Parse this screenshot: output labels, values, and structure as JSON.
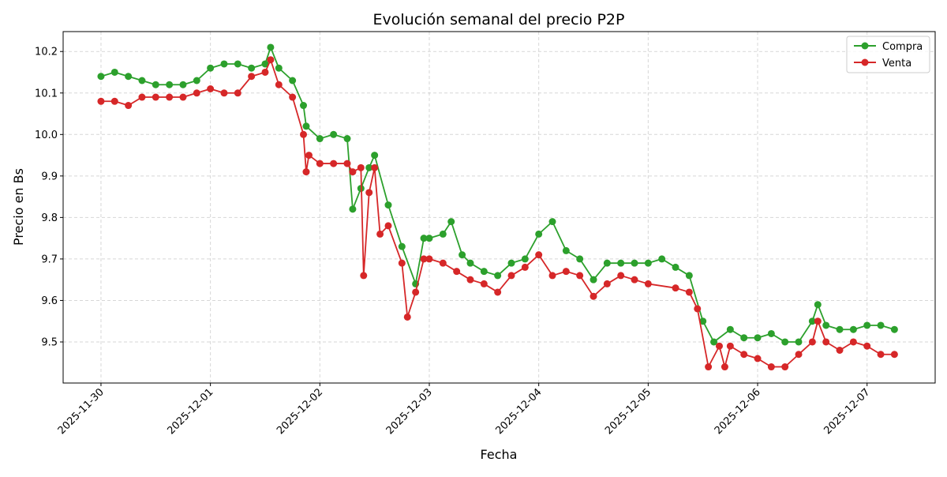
{
  "chart_data": {
    "type": "line",
    "title": "Evolución semanal del precio P2P",
    "xlabel": "Fecha",
    "ylabel": "Precio en Bs",
    "xlim": [
      "2025-11-29 15:42",
      "2025-12-07 14:56"
    ],
    "ylim": [
      9.401,
      10.248
    ],
    "grid": true,
    "legend_position": "top-right",
    "x_ticks": [
      "2025-11-30",
      "2025-12-01",
      "2025-12-02",
      "2025-12-03",
      "2025-12-04",
      "2025-12-05",
      "2025-12-06",
      "2025-12-07"
    ],
    "y_ticks": [
      9.5,
      9.6,
      9.7,
      9.8,
      9.9,
      10.0,
      10.1,
      10.2
    ],
    "series": [
      {
        "name": "Compra",
        "color": "#2ca02c",
        "points": [
          [
            "2025-11-30 00:00",
            10.14
          ],
          [
            "2025-11-30 03:00",
            10.15
          ],
          [
            "2025-11-30 06:00",
            10.14
          ],
          [
            "2025-11-30 09:00",
            10.13
          ],
          [
            "2025-11-30 12:00",
            10.12
          ],
          [
            "2025-11-30 15:00",
            10.12
          ],
          [
            "2025-11-30 18:00",
            10.12
          ],
          [
            "2025-11-30 21:00",
            10.13
          ],
          [
            "2025-12-01 00:00",
            10.16
          ],
          [
            "2025-12-01 03:00",
            10.17
          ],
          [
            "2025-12-01 06:00",
            10.17
          ],
          [
            "2025-12-01 09:00",
            10.16
          ],
          [
            "2025-12-01 12:00",
            10.17
          ],
          [
            "2025-12-01 13:12",
            10.21
          ],
          [
            "2025-12-01 15:00",
            10.16
          ],
          [
            "2025-12-01 18:00",
            10.13
          ],
          [
            "2025-12-01 20:24",
            10.07
          ],
          [
            "2025-12-01 21:00",
            10.02
          ],
          [
            "2025-12-02 00:00",
            9.99
          ],
          [
            "2025-12-02 03:00",
            10.0
          ],
          [
            "2025-12-02 06:00",
            9.99
          ],
          [
            "2025-12-02 07:12",
            9.82
          ],
          [
            "2025-12-02 09:00",
            9.87
          ],
          [
            "2025-12-02 10:48",
            9.92
          ],
          [
            "2025-12-02 12:00",
            9.95
          ],
          [
            "2025-12-02 15:00",
            9.83
          ],
          [
            "2025-12-02 18:00",
            9.73
          ],
          [
            "2025-12-02 21:00",
            9.64
          ],
          [
            "2025-12-02 22:48",
            9.75
          ],
          [
            "2025-12-03 00:00",
            9.75
          ],
          [
            "2025-12-03 03:00",
            9.76
          ],
          [
            "2025-12-03 04:48",
            9.79
          ],
          [
            "2025-12-03 07:12",
            9.71
          ],
          [
            "2025-12-03 09:00",
            9.69
          ],
          [
            "2025-12-03 12:00",
            9.67
          ],
          [
            "2025-12-03 15:00",
            9.66
          ],
          [
            "2025-12-03 18:00",
            9.69
          ],
          [
            "2025-12-03 21:00",
            9.7
          ],
          [
            "2025-12-04 00:00",
            9.76
          ],
          [
            "2025-12-04 03:00",
            9.79
          ],
          [
            "2025-12-04 06:00",
            9.72
          ],
          [
            "2025-12-04 09:00",
            9.7
          ],
          [
            "2025-12-04 12:00",
            9.65
          ],
          [
            "2025-12-04 15:00",
            9.69
          ],
          [
            "2025-12-04 18:00",
            9.69
          ],
          [
            "2025-12-04 21:00",
            9.69
          ],
          [
            "2025-12-05 00:00",
            9.69
          ],
          [
            "2025-12-05 03:00",
            9.7
          ],
          [
            "2025-12-05 06:00",
            9.68
          ],
          [
            "2025-12-05 09:00",
            9.66
          ],
          [
            "2025-12-05 12:00",
            9.55
          ],
          [
            "2025-12-05 14:24",
            9.5
          ],
          [
            "2025-12-05 18:00",
            9.53
          ],
          [
            "2025-12-05 21:00",
            9.51
          ],
          [
            "2025-12-06 00:00",
            9.51
          ],
          [
            "2025-12-06 03:00",
            9.52
          ],
          [
            "2025-12-06 06:00",
            9.5
          ],
          [
            "2025-12-06 09:00",
            9.5
          ],
          [
            "2025-12-06 12:00",
            9.55
          ],
          [
            "2025-12-06 13:12",
            9.59
          ],
          [
            "2025-12-06 15:00",
            9.54
          ],
          [
            "2025-12-06 18:00",
            9.53
          ],
          [
            "2025-12-06 21:00",
            9.53
          ],
          [
            "2025-12-07 00:00",
            9.54
          ],
          [
            "2025-12-07 03:00",
            9.54
          ],
          [
            "2025-12-07 06:00",
            9.53
          ]
        ]
      },
      {
        "name": "Venta",
        "color": "#d62728",
        "points": [
          [
            "2025-11-30 00:00",
            10.08
          ],
          [
            "2025-11-30 03:00",
            10.08
          ],
          [
            "2025-11-30 06:00",
            10.07
          ],
          [
            "2025-11-30 09:00",
            10.09
          ],
          [
            "2025-11-30 12:00",
            10.09
          ],
          [
            "2025-11-30 15:00",
            10.09
          ],
          [
            "2025-11-30 18:00",
            10.09
          ],
          [
            "2025-11-30 21:00",
            10.1
          ],
          [
            "2025-12-01 00:00",
            10.11
          ],
          [
            "2025-12-01 03:00",
            10.1
          ],
          [
            "2025-12-01 06:00",
            10.1
          ],
          [
            "2025-12-01 09:00",
            10.14
          ],
          [
            "2025-12-01 12:00",
            10.15
          ],
          [
            "2025-12-01 13:12",
            10.18
          ],
          [
            "2025-12-01 15:00",
            10.12
          ],
          [
            "2025-12-01 18:00",
            10.09
          ],
          [
            "2025-12-01 20:24",
            10.0
          ],
          [
            "2025-12-01 21:00",
            9.91
          ],
          [
            "2025-12-01 21:36",
            9.95
          ],
          [
            "2025-12-02 00:00",
            9.93
          ],
          [
            "2025-12-02 03:00",
            9.93
          ],
          [
            "2025-12-02 06:00",
            9.93
          ],
          [
            "2025-12-02 07:12",
            9.91
          ],
          [
            "2025-12-02 09:00",
            9.92
          ],
          [
            "2025-12-02 09:36",
            9.66
          ],
          [
            "2025-12-02 10:48",
            9.86
          ],
          [
            "2025-12-02 12:00",
            9.92
          ],
          [
            "2025-12-02 13:12",
            9.76
          ],
          [
            "2025-12-02 15:00",
            9.78
          ],
          [
            "2025-12-02 18:00",
            9.69
          ],
          [
            "2025-12-02 19:12",
            9.56
          ],
          [
            "2025-12-02 21:00",
            9.62
          ],
          [
            "2025-12-02 22:48",
            9.7
          ],
          [
            "2025-12-03 00:00",
            9.7
          ],
          [
            "2025-12-03 03:00",
            9.69
          ],
          [
            "2025-12-03 06:00",
            9.67
          ],
          [
            "2025-12-03 09:00",
            9.65
          ],
          [
            "2025-12-03 12:00",
            9.64
          ],
          [
            "2025-12-03 15:00",
            9.62
          ],
          [
            "2025-12-03 18:00",
            9.66
          ],
          [
            "2025-12-03 21:00",
            9.68
          ],
          [
            "2025-12-04 00:00",
            9.71
          ],
          [
            "2025-12-04 03:00",
            9.66
          ],
          [
            "2025-12-04 06:00",
            9.67
          ],
          [
            "2025-12-04 09:00",
            9.66
          ],
          [
            "2025-12-04 12:00",
            9.61
          ],
          [
            "2025-12-04 15:00",
            9.64
          ],
          [
            "2025-12-04 18:00",
            9.66
          ],
          [
            "2025-12-04 21:00",
            9.65
          ],
          [
            "2025-12-05 00:00",
            9.64
          ],
          [
            "2025-12-05 06:00",
            9.63
          ],
          [
            "2025-12-05 09:00",
            9.62
          ],
          [
            "2025-12-05 10:48",
            9.58
          ],
          [
            "2025-12-05 13:12",
            9.44
          ],
          [
            "2025-12-05 15:36",
            9.49
          ],
          [
            "2025-12-05 16:48",
            9.44
          ],
          [
            "2025-12-05 18:00",
            9.49
          ],
          [
            "2025-12-05 21:00",
            9.47
          ],
          [
            "2025-12-06 00:00",
            9.46
          ],
          [
            "2025-12-06 03:00",
            9.44
          ],
          [
            "2025-12-06 06:00",
            9.44
          ],
          [
            "2025-12-06 09:00",
            9.47
          ],
          [
            "2025-12-06 12:00",
            9.5
          ],
          [
            "2025-12-06 13:12",
            9.55
          ],
          [
            "2025-12-06 15:00",
            9.5
          ],
          [
            "2025-12-06 18:00",
            9.48
          ],
          [
            "2025-12-06 21:00",
            9.5
          ],
          [
            "2025-12-07 00:00",
            9.49
          ],
          [
            "2025-12-07 03:00",
            9.47
          ],
          [
            "2025-12-07 06:00",
            9.47
          ]
        ]
      }
    ]
  }
}
